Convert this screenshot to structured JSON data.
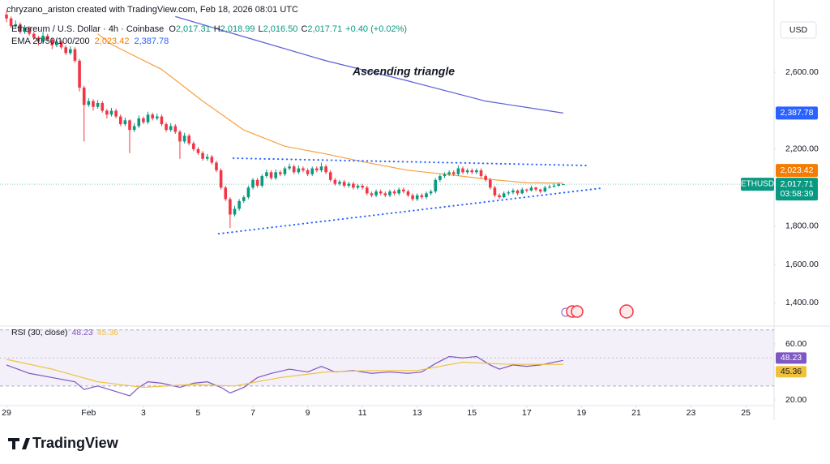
{
  "header": {
    "attribution": "chryzano_ariston created with TradingView.com, Feb 18, 2026 08:01 UTC"
  },
  "footer": {
    "brand": "TradingView"
  },
  "chart_data": {
    "type": "candlestick",
    "symbol_label": "Ethereum / U.S. Dollar · 4h · Coinbase",
    "ohlc_legend": [
      [
        "O",
        "2,017.31"
      ],
      [
        "H",
        "2,018.99"
      ],
      [
        "L",
        "2,016.50"
      ],
      [
        "C",
        "2,017.71"
      ]
    ],
    "change": "+0.40 (+0.02%)",
    "up_color": "#089981",
    "down_color": "#f23645",
    "candles": [
      [
        2900,
        2920,
        2860,
        2880
      ],
      [
        2880,
        2890,
        2830,
        2840
      ],
      [
        2840,
        2870,
        2830,
        2850
      ],
      [
        2850,
        2860,
        2800,
        2810
      ],
      [
        2810,
        2845,
        2800,
        2830
      ],
      [
        2830,
        2840,
        2790,
        2800
      ],
      [
        2800,
        2810,
        2770,
        2780
      ],
      [
        2780,
        2790,
        2740,
        2760
      ],
      [
        2760,
        2810,
        2750,
        2790
      ],
      [
        2790,
        2800,
        2760,
        2770
      ],
      [
        2770,
        2780,
        2720,
        2740
      ],
      [
        2740,
        2775,
        2730,
        2760
      ],
      [
        2760,
        2770,
        2720,
        2730
      ],
      [
        2730,
        2740,
        2690,
        2700
      ],
      [
        2700,
        2735,
        2690,
        2720
      ],
      [
        2720,
        2730,
        2650,
        2660
      ],
      [
        2660,
        2670,
        2500,
        2520
      ],
      [
        2520,
        2530,
        2240,
        2430
      ],
      [
        2430,
        2465,
        2420,
        2450
      ],
      [
        2450,
        2460,
        2400,
        2420
      ],
      [
        2420,
        2455,
        2410,
        2440
      ],
      [
        2440,
        2450,
        2390,
        2400
      ],
      [
        2400,
        2410,
        2360,
        2380
      ],
      [
        2380,
        2415,
        2370,
        2400
      ],
      [
        2400,
        2410,
        2360,
        2370
      ],
      [
        2370,
        2380,
        2320,
        2330
      ],
      [
        2330,
        2365,
        2320,
        2350
      ],
      [
        2350,
        2355,
        2180,
        2300
      ],
      [
        2300,
        2335,
        2290,
        2320
      ],
      [
        2320,
        2375,
        2310,
        2360
      ],
      [
        2360,
        2370,
        2330,
        2340
      ],
      [
        2340,
        2395,
        2330,
        2380
      ],
      [
        2380,
        2390,
        2350,
        2360
      ],
      [
        2360,
        2385,
        2350,
        2370
      ],
      [
        2370,
        2380,
        2320,
        2330
      ],
      [
        2330,
        2340,
        2290,
        2300
      ],
      [
        2300,
        2335,
        2290,
        2320
      ],
      [
        2320,
        2330,
        2280,
        2290
      ],
      [
        2290,
        2300,
        2150,
        2240
      ],
      [
        2240,
        2285,
        2230,
        2270
      ],
      [
        2270,
        2280,
        2220,
        2230
      ],
      [
        2230,
        2240,
        2190,
        2200
      ],
      [
        2200,
        2210,
        2170,
        2180
      ],
      [
        2180,
        2190,
        2140,
        2150
      ],
      [
        2150,
        2175,
        2140,
        2160
      ],
      [
        2160,
        2170,
        2120,
        2130
      ],
      [
        2130,
        2140,
        2080,
        2090
      ],
      [
        2090,
        2100,
        1990,
        2000
      ],
      [
        2000,
        2010,
        1930,
        1940
      ],
      [
        1940,
        1950,
        1790,
        1860
      ],
      [
        1860,
        1905,
        1850,
        1890
      ],
      [
        1890,
        1940,
        1880,
        1930
      ],
      [
        1930,
        1960,
        1920,
        1950
      ],
      [
        1950,
        2010,
        1940,
        2000
      ],
      [
        2000,
        2050,
        1990,
        2040
      ],
      [
        2040,
        2050,
        2000,
        2010
      ],
      [
        2010,
        2070,
        2000,
        2060
      ],
      [
        2060,
        2095,
        2050,
        2080
      ],
      [
        2080,
        2090,
        2040,
        2050
      ],
      [
        2050,
        2095,
        2040,
        2080
      ],
      [
        2080,
        2090,
        2060,
        2070
      ],
      [
        2070,
        2110,
        2060,
        2100
      ],
      [
        2100,
        2125,
        2090,
        2110
      ],
      [
        2110,
        2120,
        2070,
        2080
      ],
      [
        2080,
        2115,
        2070,
        2100
      ],
      [
        2100,
        2110,
        2080,
        2090
      ],
      [
        2090,
        2100,
        2060,
        2070
      ],
      [
        2070,
        2110,
        2060,
        2100
      ],
      [
        2100,
        2110,
        2080,
        2090
      ],
      [
        2090,
        2130,
        2080,
        2110
      ],
      [
        2110,
        2120,
        2070,
        2080
      ],
      [
        2080,
        2090,
        2030,
        2040
      ],
      [
        2040,
        2050,
        2010,
        2020
      ],
      [
        2020,
        2040,
        2010,
        2030
      ],
      [
        2030,
        2040,
        2000,
        2010
      ],
      [
        2010,
        2030,
        2000,
        2020
      ],
      [
        2020,
        2030,
        1990,
        2000
      ],
      [
        2000,
        2020,
        1990,
        2010
      ],
      [
        2010,
        2020,
        1990,
        2000
      ],
      [
        2000,
        2010,
        1960,
        1970
      ],
      [
        1970,
        1980,
        1950,
        1960
      ],
      [
        1960,
        1990,
        1950,
        1980
      ],
      [
        1980,
        1990,
        1960,
        1970
      ],
      [
        1970,
        1980,
        1950,
        1960
      ],
      [
        1960,
        1990,
        1950,
        1980
      ],
      [
        1980,
        1990,
        1960,
        1970
      ],
      [
        1970,
        2000,
        1960,
        1990
      ],
      [
        1990,
        2000,
        1970,
        1980
      ],
      [
        1980,
        1990,
        1950,
        1960
      ],
      [
        1960,
        1970,
        1930,
        1940
      ],
      [
        1940,
        1970,
        1930,
        1960
      ],
      [
        1960,
        1970,
        1940,
        1950
      ],
      [
        1950,
        1980,
        1940,
        1970
      ],
      [
        1970,
        1990,
        1960,
        1980
      ],
      [
        1980,
        2050,
        1970,
        2040
      ],
      [
        2040,
        2070,
        2030,
        2060
      ],
      [
        2060,
        2080,
        2050,
        2070
      ],
      [
        2070,
        2090,
        2060,
        2080
      ],
      [
        2080,
        2090,
        2060,
        2070
      ],
      [
        2070,
        2115,
        2060,
        2100
      ],
      [
        2100,
        2110,
        2070,
        2080
      ],
      [
        2080,
        2100,
        2070,
        2090
      ],
      [
        2090,
        2100,
        2070,
        2080
      ],
      [
        2080,
        2100,
        2070,
        2090
      ],
      [
        2090,
        2100,
        2050,
        2060
      ],
      [
        2060,
        2070,
        2030,
        2040
      ],
      [
        2040,
        2050,
        1990,
        2000
      ],
      [
        2000,
        2010,
        1950,
        1960
      ],
      [
        1960,
        1970,
        1940,
        1950
      ],
      [
        1950,
        1980,
        1945,
        1970
      ],
      [
        1970,
        1985,
        1960,
        1975
      ],
      [
        1975,
        1995,
        1965,
        1985
      ],
      [
        1985,
        1990,
        1960,
        1970
      ],
      [
        1970,
        2000,
        1965,
        1990
      ],
      [
        1990,
        1995,
        1975,
        1985
      ],
      [
        1985,
        2010,
        1980,
        2000
      ],
      [
        2000,
        2005,
        1980,
        1990
      ],
      [
        1990,
        1995,
        1970,
        1980
      ],
      [
        1980,
        2010,
        1975,
        2000
      ],
      [
        2000,
        2015,
        1995,
        2005
      ],
      [
        2005,
        2020,
        2000,
        2010
      ],
      [
        2010,
        2025,
        2005,
        2017.31
      ],
      [
        2017.31,
        2018.99,
        2016.5,
        2017.71
      ]
    ],
    "xlim": [
      -1.42,
      168.2
    ],
    "xticks": [
      {
        "value": 0,
        "label": "29"
      },
      {
        "value": 18,
        "label": "Feb"
      },
      {
        "value": 30,
        "label": "3"
      },
      {
        "value": 42,
        "label": "5"
      },
      {
        "value": 54,
        "label": "7"
      },
      {
        "value": 66,
        "label": "9"
      },
      {
        "value": 78,
        "label": "11"
      },
      {
        "value": 90,
        "label": "13"
      },
      {
        "value": 102,
        "label": "15"
      },
      {
        "value": 114,
        "label": "17"
      },
      {
        "value": 126,
        "label": "19"
      },
      {
        "value": 138,
        "label": "21"
      },
      {
        "value": 150,
        "label": "23"
      },
      {
        "value": 162,
        "label": "25"
      }
    ],
    "ylim": [
      1288,
      2976
    ],
    "yticks": [
      {
        "value": 2600,
        "label": "2,600.00"
      },
      {
        "value": 2200,
        "label": "2,200.00"
      },
      {
        "value": 1800,
        "label": "1,800.00"
      },
      {
        "value": 1600,
        "label": "1,600.00"
      },
      {
        "value": 1400,
        "label": "1,400.00"
      }
    ],
    "currency": "USD",
    "symbol": "ETHUSD",
    "last_price": {
      "value": 2017.71,
      "label": "2,017.71"
    },
    "countdown": "03:58:39",
    "ema": {
      "name": "EMA 20/50/100/200",
      "lines": [
        {
          "color": "#f7a040",
          "x": [
            20,
            23,
            34,
            43,
            52,
            61,
            70,
            79,
            88,
            96,
            105,
            114,
            122
          ],
          "values": [
            2800,
            2745,
            2615,
            2450,
            2300,
            2215,
            2175,
            2130,
            2090,
            2070,
            2045,
            2025,
            2023.42
          ],
          "last": {
            "value": 2023.42,
            "label": "2,023.42"
          }
        },
        {
          "color": "#5b5fd6",
          "x": [
            37,
            52,
            70,
            88,
            105,
            122
          ],
          "values": [
            2890,
            2785,
            2660,
            2555,
            2450,
            2387.78
          ],
          "last": {
            "value": 2387.78,
            "label": "2,387.78"
          }
        }
      ]
    },
    "annotation": "Ascending triangle",
    "trendlines": [
      {
        "color": "#2962ff",
        "x": [
          49.7,
          127.4
        ],
        "values": [
          2153,
          2115
        ]
      },
      {
        "color": "#2962ff",
        "x": [
          46.5,
          130
        ],
        "values": [
          1760,
          1996
        ]
      }
    ],
    "rsi": {
      "name": "RSI (30, close)",
      "ylim": [
        16,
        71
      ],
      "yticks": [
        {
          "value": 60,
          "label": "60.00"
        },
        {
          "value": 20,
          "label": "20.00"
        }
      ],
      "band": [
        30,
        70
      ],
      "middle": 50,
      "lines": [
        {
          "color": "#7e57c2",
          "x": [
            0,
            5,
            10,
            15,
            17,
            20,
            24,
            27,
            29,
            31,
            34,
            38,
            41,
            44,
            47,
            49,
            52,
            55,
            58,
            62,
            66,
            69,
            72,
            76,
            80,
            84,
            88,
            91,
            94,
            97,
            100,
            103,
            106,
            108,
            111,
            114,
            117,
            120,
            122
          ],
          "values": [
            45,
            39,
            36,
            33,
            27.5,
            30,
            26,
            23,
            29,
            33,
            32,
            29,
            32,
            33,
            29,
            25,
            29,
            36,
            39,
            42,
            40,
            44,
            40,
            41,
            39,
            40,
            39,
            40,
            46,
            51,
            50,
            51,
            45,
            42,
            45,
            44,
            45,
            47,
            48.23
          ],
          "last": {
            "value": 48.23,
            "label": "48.23"
          }
        },
        {
          "color": "#f0c23b",
          "x": [
            0,
            10,
            20,
            30,
            40,
            50,
            60,
            70,
            80,
            90,
            100,
            110,
            122
          ],
          "values": [
            49,
            42,
            33,
            29,
            31,
            30,
            36,
            40,
            41,
            41,
            47,
            45.5,
            45.36
          ],
          "last": {
            "value": 45.36,
            "label": "45.36"
          }
        }
      ]
    }
  }
}
